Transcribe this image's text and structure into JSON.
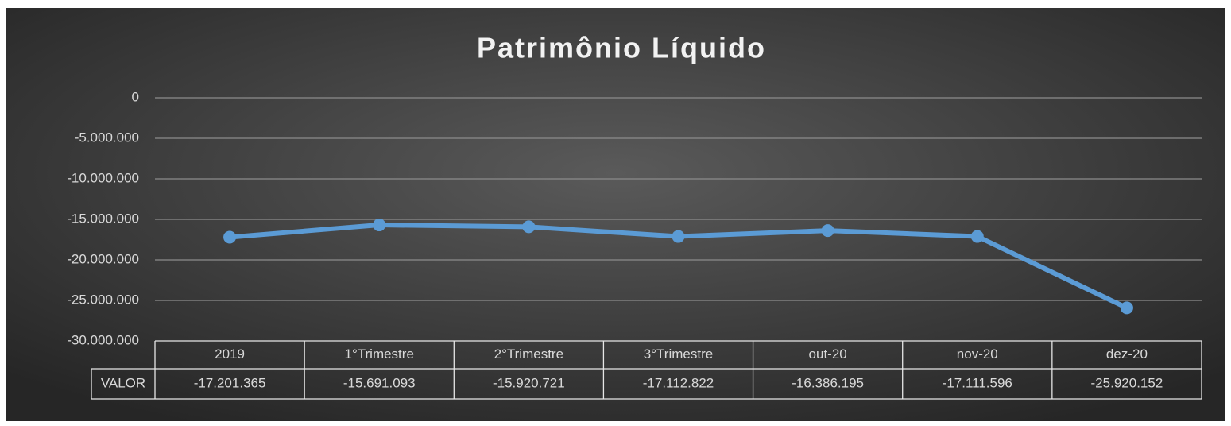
{
  "chart_data": {
    "type": "line",
    "title": "Patrimônio Líquido",
    "categories": [
      "2019",
      "1°Trimestre",
      "2°Trimestre",
      "3°Trimestre",
      "out-20",
      "nov-20",
      "dez-20"
    ],
    "series": [
      {
        "name": "VALOR",
        "color": "#5b9bd5",
        "values": [
          -17201365,
          -15691093,
          -15920721,
          -17112822,
          -16386195,
          -17111596,
          -25920152
        ],
        "value_labels": [
          "-17.201.365",
          "-15.691.093",
          "-15.920.721",
          "-17.112.822",
          "-16.386.195",
          "-17.111.596",
          "-25.920.152"
        ]
      }
    ],
    "ylim": [
      -30000000,
      0
    ],
    "yticks": [
      {
        "value": -30000000,
        "label": "-30.000.000"
      },
      {
        "value": -25000000,
        "label": "-25.000.000"
      },
      {
        "value": -20000000,
        "label": "-20.000.000"
      },
      {
        "value": -15000000,
        "label": "-15.000.000"
      },
      {
        "value": -10000000,
        "label": "-10.000.000"
      },
      {
        "value": -5000000,
        "label": "-5.000.000"
      },
      0
    ],
    "grid": true
  }
}
